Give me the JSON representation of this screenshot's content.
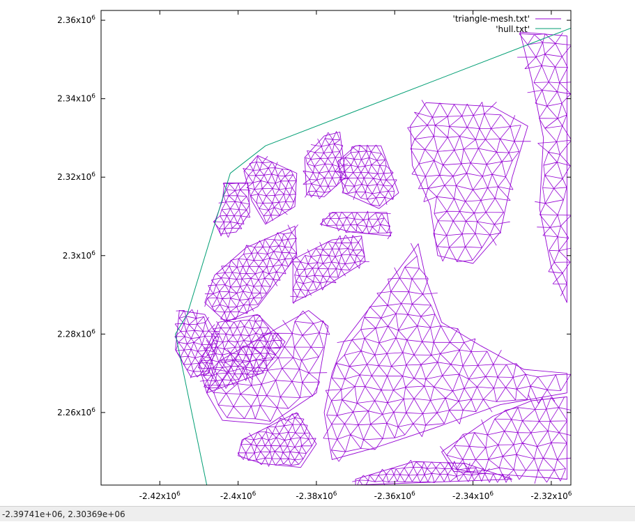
{
  "chart_data": {
    "type": "line",
    "title": "",
    "xlabel": "",
    "ylabel": "",
    "xlim": [
      -2435000.0,
      -2315000.0
    ],
    "ylim": [
      2241500.0,
      2362500.0
    ],
    "x_ticks": [
      {
        "value": -2420000.0,
        "label": "-2.42x10",
        "exp": "6"
      },
      {
        "value": -2400000.0,
        "label": "-2.4x10",
        "exp": "6"
      },
      {
        "value": -2380000.0,
        "label": "-2.38x10",
        "exp": "6"
      },
      {
        "value": -2360000.0,
        "label": "-2.36x10",
        "exp": "6"
      },
      {
        "value": -2340000.0,
        "label": "-2.34x10",
        "exp": "6"
      },
      {
        "value": -2320000.0,
        "label": "-2.32x10",
        "exp": "6"
      }
    ],
    "y_ticks": [
      {
        "value": 2260000.0,
        "label": "2.26x10",
        "exp": "6"
      },
      {
        "value": 2280000.0,
        "label": "2.28x10",
        "exp": "6"
      },
      {
        "value": 2300000.0,
        "label": "2.3x10",
        "exp": "6"
      },
      {
        "value": 2320000.0,
        "label": "2.32x10",
        "exp": "6"
      },
      {
        "value": 2340000.0,
        "label": "2.34x10",
        "exp": "6"
      },
      {
        "value": 2360000.0,
        "label": "2.36x10",
        "exp": "6"
      }
    ],
    "legend_position": "top-right",
    "grid": false,
    "series": [
      {
        "name": "'triangle-mesh.txt'",
        "color": "#9400d3",
        "style": "triangle mesh",
        "regions": [
          [
            [
              -2403500.0,
              2318500.0
            ],
            [
              -2397500.0,
              2318500.0
            ],
            [
              -2397000.0,
              2311000.0
            ],
            [
              -2400500.0,
              2306000.0
            ],
            [
              -2404500.0,
              2305500.0
            ],
            [
              -2406000.0,
              2308500.0
            ],
            [
              -2404000.0,
              2314000.0
            ]
          ],
          [
            [
              -2395000.0,
              2325500.0
            ],
            [
              -2385000.0,
              2321000.0
            ],
            [
              -2385500.0,
              2312500.0
            ],
            [
              -2393000.0,
              2308000.0
            ],
            [
              -2396500.0,
              2314000.0
            ],
            [
              -2398500.0,
              2321500.0
            ]
          ],
          [
            [
              -2378000.0,
              2330500.0
            ],
            [
              -2374000.0,
              2331500.0
            ],
            [
              -2372500.0,
              2320000.0
            ],
            [
              -2378000.0,
              2315000.0
            ],
            [
              -2382500.0,
              2315500.0
            ],
            [
              -2383000.0,
              2325000.0
            ]
          ],
          [
            [
              -2370000.0,
              2328000.0
            ],
            [
              -2363500.0,
              2328000.0
            ],
            [
              -2359000.0,
              2316000.0
            ],
            [
              -2364000.0,
              2312000.0
            ],
            [
              -2373000.0,
              2316000.0
            ],
            [
              -2374500.0,
              2324000.0
            ]
          ],
          [
            [
              -2376000.0,
              2311000.0
            ],
            [
              -2362000.0,
              2311000.0
            ],
            [
              -2361000.0,
              2305000.0
            ],
            [
              -2371000.0,
              2306000.0
            ],
            [
              -2379000.0,
              2308000.0
            ]
          ],
          [
            [
              -2352000.0,
              2339000.0
            ],
            [
              -2335000.0,
              2338000.0
            ],
            [
              -2326000.0,
              2333000.0
            ],
            [
              -2330000.0,
              2320000.0
            ],
            [
              -2333000.0,
              2306000.0
            ],
            [
              -2340000.0,
              2298000.0
            ],
            [
              -2349000.0,
              2300000.0
            ],
            [
              -2351000.0,
              2313000.0
            ],
            [
              -2355500.0,
              2323000.0
            ],
            [
              -2356000.0,
              2333000.0
            ]
          ],
          [
            [
              -2328000.0,
              2357000.0
            ],
            [
              -2316000.0,
              2356000.0
            ],
            [
              -2316000.0,
              2288000.0
            ],
            [
              -2320000.0,
              2297000.0
            ],
            [
              -2323000.0,
              2312000.0
            ],
            [
              -2322000.0,
              2330000.0
            ],
            [
              -2325000.0,
              2345000.0
            ]
          ],
          [
            [
              -2415000.0,
              2286000.0
            ],
            [
              -2408500.0,
              2285000.0
            ],
            [
              -2405000.0,
              2279000.0
            ],
            [
              -2407500.0,
              2270000.0
            ],
            [
              -2412000.0,
              2269000.0
            ],
            [
              -2416000.0,
              2276000.0
            ]
          ],
          [
            [
              -2406000.0,
              2295000.0
            ],
            [
              -2398000.0,
              2302000.0
            ],
            [
              -2385500.0,
              2307500.0
            ],
            [
              -2385000.0,
              2300000.0
            ],
            [
              -2395000.0,
              2287000.0
            ],
            [
              -2403000.0,
              2283000.0
            ],
            [
              -2408500.0,
              2288000.0
            ]
          ],
          [
            [
              -2386000.0,
              2299000.0
            ],
            [
              -2376000.0,
              2304000.0
            ],
            [
              -2368500.0,
              2305000.0
            ],
            [
              -2367500.0,
              2298500.0
            ],
            [
              -2378000.0,
              2292000.0
            ],
            [
              -2386000.0,
              2288000.0
            ]
          ],
          [
            [
              -2405000.0,
              2283000.0
            ],
            [
              -2395000.0,
              2285000.0
            ],
            [
              -2388000.0,
              2278000.0
            ],
            [
              -2394000.0,
              2270000.0
            ],
            [
              -2408000.0,
              2265000.0
            ],
            [
              -2410000.0,
              2272000.0
            ]
          ],
          [
            [
              -2405000.0,
              2273000.0
            ],
            [
              -2382000.0,
              2286000.0
            ],
            [
              -2377000.0,
              2282000.0
            ],
            [
              -2380000.0,
              2265000.0
            ],
            [
              -2392000.0,
              2257000.0
            ],
            [
              -2404000.0,
              2258000.0
            ],
            [
              -2408000.0,
              2265000.0
            ]
          ],
          [
            [
              -2399000.0,
              2253000.0
            ],
            [
              -2385000.0,
              2260000.0
            ],
            [
              -2380000.0,
              2252000.0
            ],
            [
              -2384000.0,
              2246000.0
            ],
            [
              -2394000.0,
              2247000.0
            ],
            [
              -2400000.0,
              2249000.0
            ]
          ],
          [
            [
              -2373000.0,
              2278000.0
            ],
            [
              -2354000.0,
              2303000.0
            ],
            [
              -2352000.0,
              2294000.0
            ],
            [
              -2348000.0,
              2283000.0
            ],
            [
              -2338000.0,
              2277000.0
            ],
            [
              -2327000.0,
              2271000.0
            ],
            [
              -2316000.0,
              2270000.0
            ],
            [
              -2316000.0,
              2265000.0
            ],
            [
              -2333000.0,
              2262000.0
            ],
            [
              -2350000.0,
              2256000.0
            ],
            [
              -2365000.0,
              2251000.0
            ],
            [
              -2376000.0,
              2248000.0
            ],
            [
              -2378000.0,
              2260000.0
            ],
            [
              -2376000.0,
              2270000.0
            ]
          ],
          [
            [
              -2348000.0,
              2250000.0
            ],
            [
              -2335000.0,
              2259000.0
            ],
            [
              -2325000.0,
              2263000.0
            ],
            [
              -2316000.0,
              2264000.0
            ],
            [
              -2316000.0,
              2243000.0
            ],
            [
              -2330000.0,
              2244000.0
            ],
            [
              -2345000.0,
              2245000.0
            ]
          ],
          [
            [
              -2370000.0,
              2243000.0
            ],
            [
              -2355000.0,
              2247500.0
            ],
            [
              -2342000.0,
              2247000.0
            ],
            [
              -2330000.0,
              2243000.0
            ],
            [
              -2370000.0,
              2241500.0
            ]
          ]
        ]
      },
      {
        "name": "'hull.txt'",
        "color": "#009e73",
        "points": [
          [
            -2408000.0,
            2241500.0
          ],
          [
            -2416000.0,
            2280000.0
          ],
          [
            -2413000.0,
            2285000.0
          ],
          [
            -2402000.0,
            2321000.0
          ],
          [
            -2393000.0,
            2328000.0
          ],
          [
            -2315000.0,
            2358000.0
          ]
        ]
      }
    ]
  },
  "status_bar": {
    "coords": "-2.39741e+06,  2.30369e+06"
  }
}
